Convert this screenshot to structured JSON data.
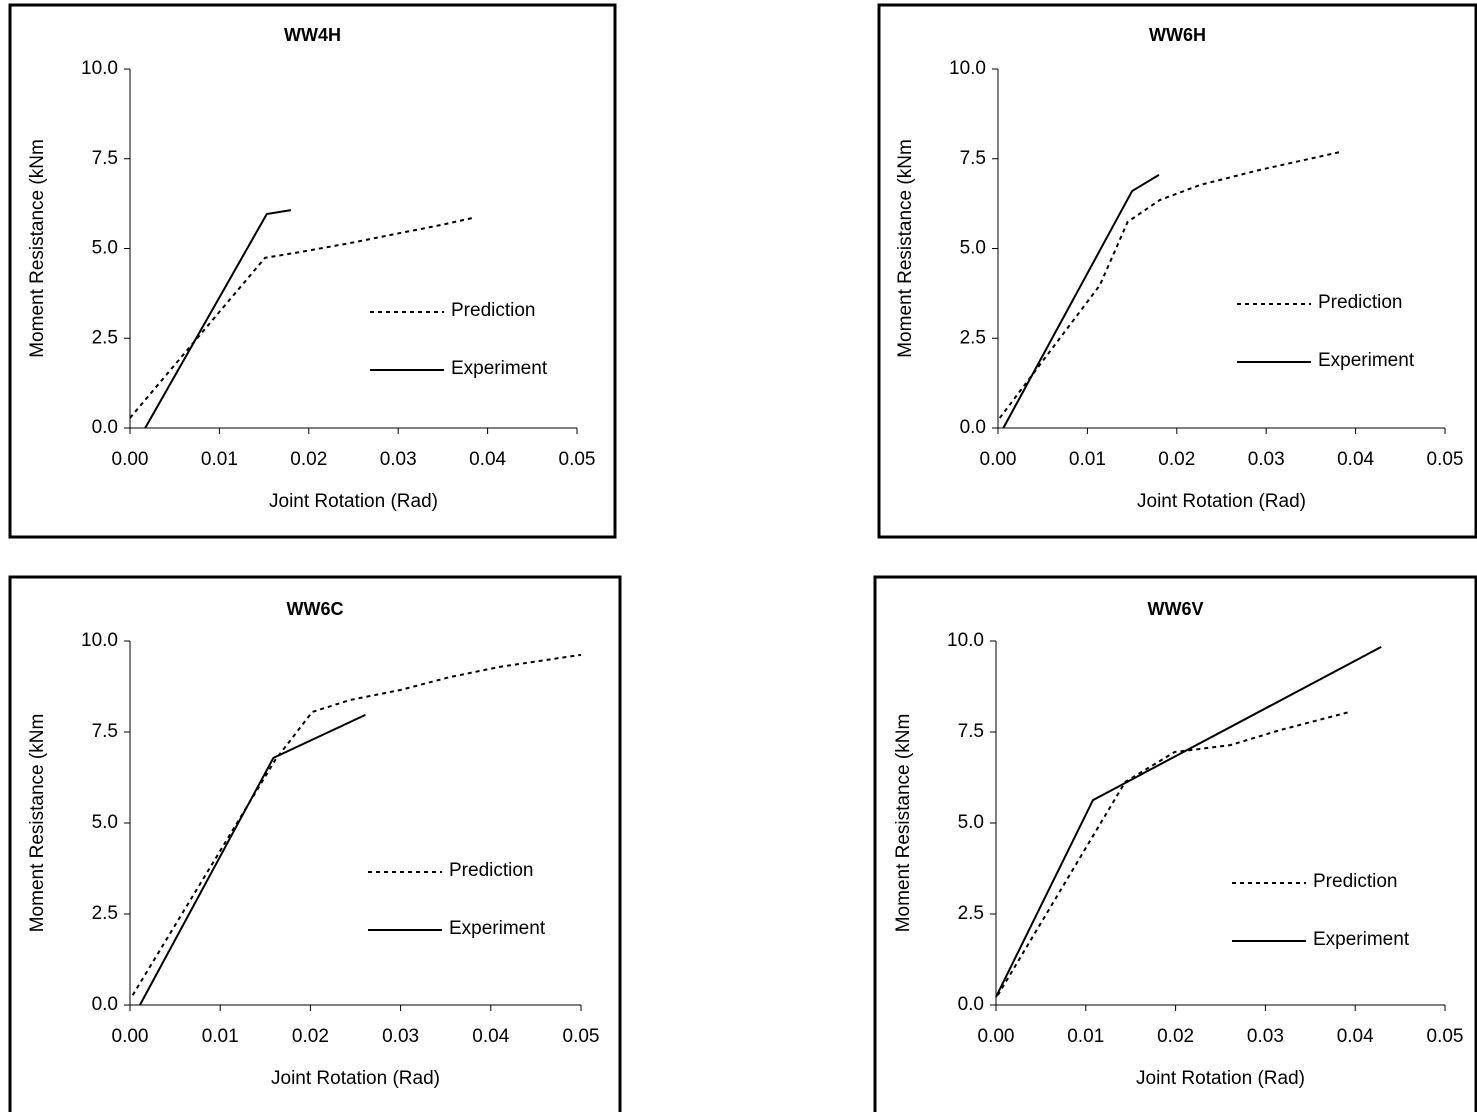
{
  "chart_data": [
    {
      "type": "line",
      "title": "WW4H",
      "x_label": "Joint Rotation (Rad)",
      "y_label": "Moment Resistance (kNm",
      "xlim": [
        0,
        0.05
      ],
      "ylim": [
        0,
        10
      ],
      "xticks": [
        {
          "value": 0,
          "label": "0.00"
        },
        {
          "value": 0.01,
          "label": "0.01"
        },
        {
          "value": 0.02,
          "label": "0.02"
        },
        {
          "value": 0.03,
          "label": "0.03"
        },
        {
          "value": 0.04,
          "label": "0.04"
        },
        {
          "value": 0.05,
          "label": "0.05"
        }
      ],
      "yticks": [
        {
          "value": 0,
          "label": "0.0"
        },
        {
          "value": 2.5,
          "label": "2.5"
        },
        {
          "value": 5,
          "label": "5.0"
        },
        {
          "value": 7.5,
          "label": "7.5"
        },
        {
          "value": 10,
          "label": "10.0"
        }
      ],
      "series": [
        {
          "name": "Prediction",
          "color": "#000000",
          "line_style": "dashed",
          "x": [
            0.0,
            0.0151,
            0.019,
            0.0246,
            0.0302,
            0.0347,
            0.0383
          ],
          "values": [
            0.28,
            4.74,
            4.9,
            5.15,
            5.43,
            5.65,
            5.85
          ]
        },
        {
          "name": "Experiment",
          "color": "#000000",
          "line_style": "solid",
          "x": [
            0.0017,
            0.0153,
            0.018
          ],
          "values": [
            0,
            5.96,
            6.07
          ]
        }
      ]
    },
    {
      "type": "line",
      "title": "WW6H",
      "x_label": "Joint Rotation (Rad)",
      "y_label": "Moment Resistance (kNm",
      "xlim": [
        0,
        0.05
      ],
      "ylim": [
        0,
        10
      ],
      "xticks": [
        {
          "value": 0,
          "label": "0.00"
        },
        {
          "value": 0.01,
          "label": "0.01"
        },
        {
          "value": 0.02,
          "label": "0.02"
        },
        {
          "value": 0.03,
          "label": "0.03"
        },
        {
          "value": 0.04,
          "label": "0.04"
        },
        {
          "value": 0.05,
          "label": "0.05"
        }
      ],
      "yticks": [
        {
          "value": 0,
          "label": "0.0"
        },
        {
          "value": 2.5,
          "label": "2.5"
        },
        {
          "value": 5,
          "label": "5.0"
        },
        {
          "value": 7.5,
          "label": "7.5"
        },
        {
          "value": 10,
          "label": "10.0"
        }
      ],
      "series": [
        {
          "name": "Prediction",
          "color": "#000000",
          "line_style": "dashed",
          "x": [
            0.0002,
            0.0114,
            0.0145,
            0.0181,
            0.0226,
            0.0293,
            0.0383
          ],
          "values": [
            0.28,
            3.98,
            5.74,
            6.35,
            6.77,
            7.19,
            7.69
          ]
        },
        {
          "name": "Experiment",
          "color": "#000000",
          "line_style": "solid",
          "x": [
            0.0006,
            0.015,
            0.018
          ],
          "values": [
            0,
            6.6,
            7.05
          ]
        }
      ]
    },
    {
      "type": "line",
      "title": "WW6C",
      "x_label": "Joint Rotation (Rad)",
      "y_label": "Moment Resistance (kNm",
      "xlim": [
        0,
        0.05
      ],
      "ylim": [
        0,
        10
      ],
      "xticks": [
        {
          "value": 0,
          "label": "0.00"
        },
        {
          "value": 0.01,
          "label": "0.01"
        },
        {
          "value": 0.02,
          "label": "0.02"
        },
        {
          "value": 0.03,
          "label": "0.03"
        },
        {
          "value": 0.04,
          "label": "0.04"
        },
        {
          "value": 0.05,
          "label": "0.05"
        }
      ],
      "yticks": [
        {
          "value": 0,
          "label": "0.0"
        },
        {
          "value": 2.5,
          "label": "2.5"
        },
        {
          "value": 5,
          "label": "5.0"
        },
        {
          "value": 7.5,
          "label": "7.5"
        },
        {
          "value": 10,
          "label": "10.0"
        }
      ],
      "series": [
        {
          "name": "Prediction",
          "color": "#000000",
          "line_style": "dashed",
          "x": [
            0.0003,
            0.0161,
            0.0202,
            0.0244,
            0.0299,
            0.0355,
            0.041,
            0.05
          ],
          "values": [
            0.27,
            6.73,
            8.05,
            8.38,
            8.65,
            9.01,
            9.29,
            9.62
          ]
        },
        {
          "name": "Experiment",
          "color": "#000000",
          "line_style": "solid",
          "x": [
            0.0011,
            0.0159,
            0.0261
          ],
          "values": [
            0,
            6.79,
            7.97
          ]
        }
      ]
    },
    {
      "type": "line",
      "title": "WW6V",
      "x_label": "Joint Rotation (Rad)",
      "y_label": "Moment Resistance (kNm",
      "xlim": [
        0,
        0.05
      ],
      "ylim": [
        0,
        10
      ],
      "xticks": [
        {
          "value": 0,
          "label": "0.00"
        },
        {
          "value": 0.01,
          "label": "0.01"
        },
        {
          "value": 0.02,
          "label": "0.02"
        },
        {
          "value": 0.03,
          "label": "0.03"
        },
        {
          "value": 0.04,
          "label": "0.04"
        },
        {
          "value": 0.05,
          "label": "0.05"
        }
      ],
      "yticks": [
        {
          "value": 0,
          "label": "0.0"
        },
        {
          "value": 2.5,
          "label": "2.5"
        },
        {
          "value": 5,
          "label": "5.0"
        },
        {
          "value": 7.5,
          "label": "7.5"
        },
        {
          "value": 10,
          "label": "10.0"
        }
      ],
      "series": [
        {
          "name": "Prediction",
          "color": "#000000",
          "line_style": "dashed",
          "x": [
            0.0002,
            0.0144,
            0.0199,
            0.0261,
            0.0316,
            0.0392
          ],
          "values": [
            0.27,
            6.13,
            6.95,
            7.14,
            7.55,
            8.04
          ]
        },
        {
          "name": "Experiment",
          "color": "#000000",
          "line_style": "solid",
          "x": [
            0.0,
            0.0108,
            0.0429
          ],
          "values": [
            0.22,
            5.63,
            9.84
          ]
        }
      ]
    }
  ]
}
